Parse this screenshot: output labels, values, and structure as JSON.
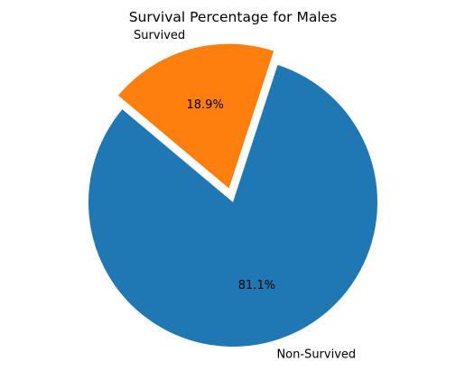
{
  "chart_data": {
    "type": "pie",
    "title": "Survival Percentage for Males",
    "slices": [
      {
        "label": "Non-Survived",
        "value": 81.1,
        "pct_label": "81.1%",
        "color": "#1f77b4",
        "exploded": false
      },
      {
        "label": "Survived",
        "value": 18.9,
        "pct_label": "18.9%",
        "color": "#ff7f0e",
        "exploded": true
      }
    ],
    "start_angle_deg": 140,
    "direction": "counterclockwise",
    "legend": "none"
  }
}
